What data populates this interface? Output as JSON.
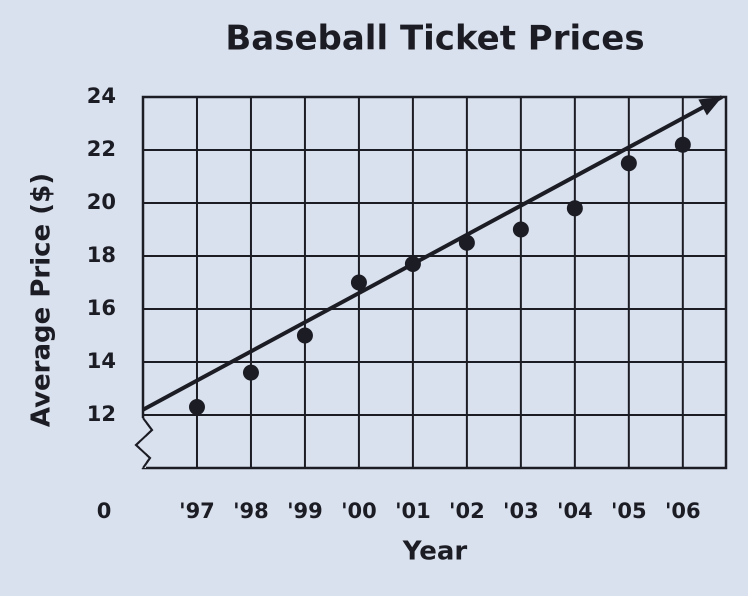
{
  "chart_data": {
    "type": "scatter",
    "title": "Baseball Ticket Prices",
    "x_label": "Year",
    "y_label": "Average Price ($)",
    "categories": [
      "'97",
      "'98",
      "'99",
      "'00",
      "'01",
      "'02",
      "'03",
      "'04",
      "'05",
      "'06"
    ],
    "values": [
      12.3,
      13.6,
      15.0,
      17.0,
      17.7,
      18.5,
      19.0,
      19.8,
      21.5,
      22.2
    ],
    "color": "#1c1c24",
    "trend_line": [
      12.2,
      24
    ],
    "ylim": [
      10,
      24
    ],
    "yticks": [
      12,
      14,
      16,
      18,
      20,
      22,
      24
    ],
    "y_origin_label": "0",
    "grid": true
  }
}
